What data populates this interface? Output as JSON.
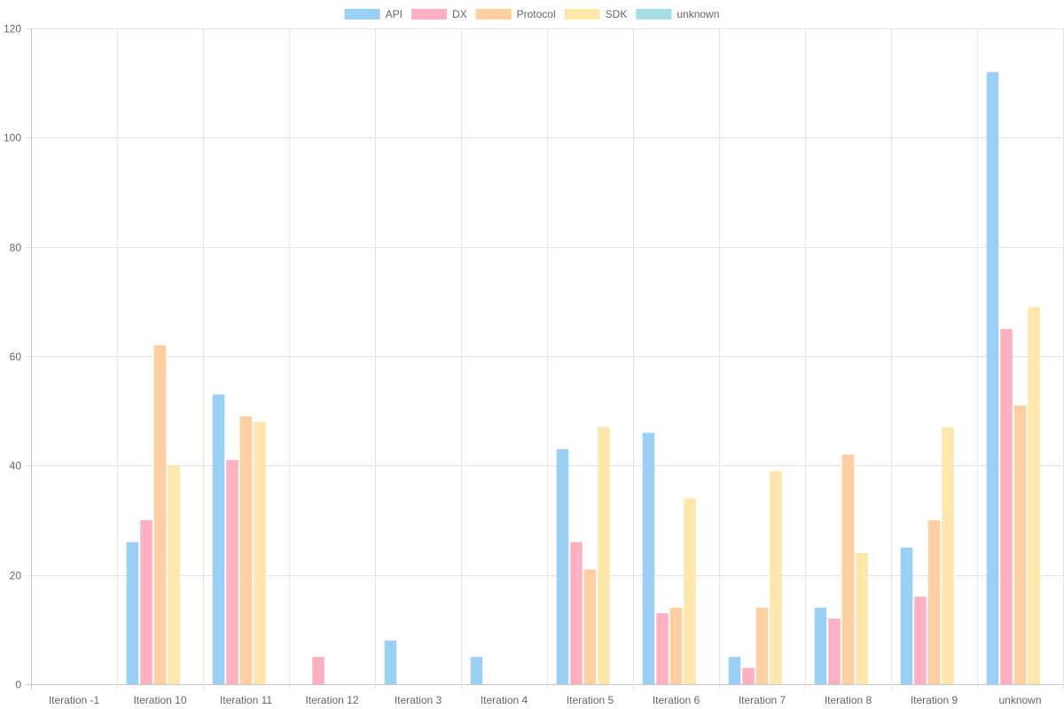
{
  "chart_data": {
    "type": "bar",
    "categories": [
      "Iteration -1",
      "Iteration 10",
      "Iteration 11",
      "Iteration 12",
      "Iteration 3",
      "Iteration 4",
      "Iteration 5",
      "Iteration 6",
      "Iteration 7",
      "Iteration 8",
      "Iteration 9",
      "unknown"
    ],
    "series": [
      {
        "name": "API",
        "color": "#9ad0f5",
        "values": [
          0,
          26,
          53,
          0,
          8,
          5,
          43,
          46,
          5,
          14,
          25,
          112
        ]
      },
      {
        "name": "DX",
        "color": "#ffb1c1",
        "values": [
          0,
          30,
          41,
          5,
          0,
          0,
          26,
          13,
          3,
          12,
          16,
          65
        ]
      },
      {
        "name": "Protocol",
        "color": "#ffcf9f",
        "values": [
          0,
          62,
          49,
          0,
          0,
          0,
          21,
          14,
          14,
          42,
          30,
          51
        ]
      },
      {
        "name": "SDK",
        "color": "#ffe6aa",
        "values": [
          0,
          40,
          48,
          0,
          0,
          0,
          47,
          34,
          39,
          24,
          47,
          69
        ]
      },
      {
        "name": "unknown",
        "color": "#a5dfdf",
        "values": [
          0,
          0,
          0,
          0,
          0,
          0,
          0,
          0,
          0,
          0,
          0,
          0
        ]
      }
    ],
    "y_ticks": [
      "0",
      "20",
      "40",
      "60",
      "80",
      "100",
      "120"
    ],
    "ylim": [
      0,
      120
    ],
    "grid": true,
    "legend_position": "top"
  }
}
